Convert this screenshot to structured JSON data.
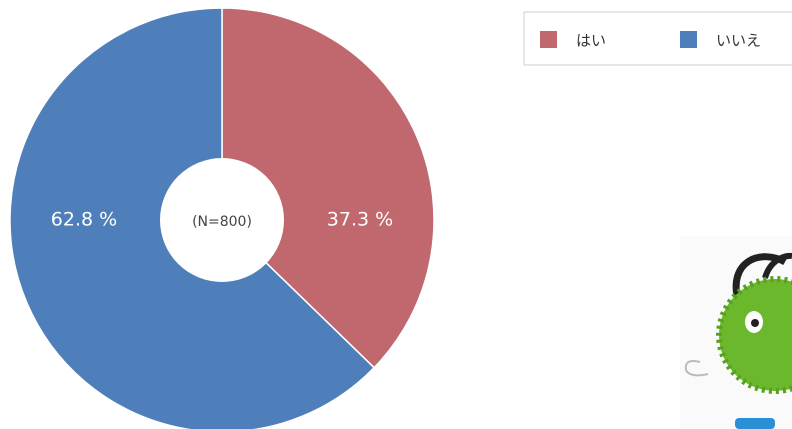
{
  "chart_data": {
    "type": "pie",
    "categories": [
      "はい",
      "いいえ"
    ],
    "values": [
      37.3,
      62.8
    ],
    "value_labels": [
      "37.3 %",
      "62.8 %"
    ],
    "colors": [
      "#c0686e",
      "#4f7fba"
    ],
    "center_label": "(N=800)",
    "legend": "top-right"
  }
}
